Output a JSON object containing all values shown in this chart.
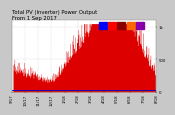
{
  "title": "Total PV (Inverter) Power Output",
  "subtitle": "From 1 Sep 2017",
  "bg_color": "#c8c8c8",
  "plot_bg_color": "#ffffff",
  "bar_color": "#dd0000",
  "line_color": "#0000cc",
  "ylim": [
    0,
    1100
  ],
  "xlim": [
    0,
    1
  ],
  "hline_y": 30,
  "n_points": 365,
  "title_fontsize": 3.8,
  "tick_fontsize": 2.8,
  "grid_color": "#aaaaaa",
  "grid_linestyle": ":",
  "legend_colors": [
    "#0000ff",
    "#ff0000",
    "#880000",
    "#ff6600",
    "#8800aa"
  ],
  "xtick_labels": [
    "9/17",
    "10/17",
    "11/17",
    "12/17",
    "1/18",
    "2/18",
    "3/18",
    "4/18",
    "5/18",
    "6/18",
    "7/18",
    "8/18"
  ],
  "ytick_vals": [
    0,
    500,
    1000
  ],
  "ytick_labels": [
    "0",
    "500",
    "1k"
  ]
}
